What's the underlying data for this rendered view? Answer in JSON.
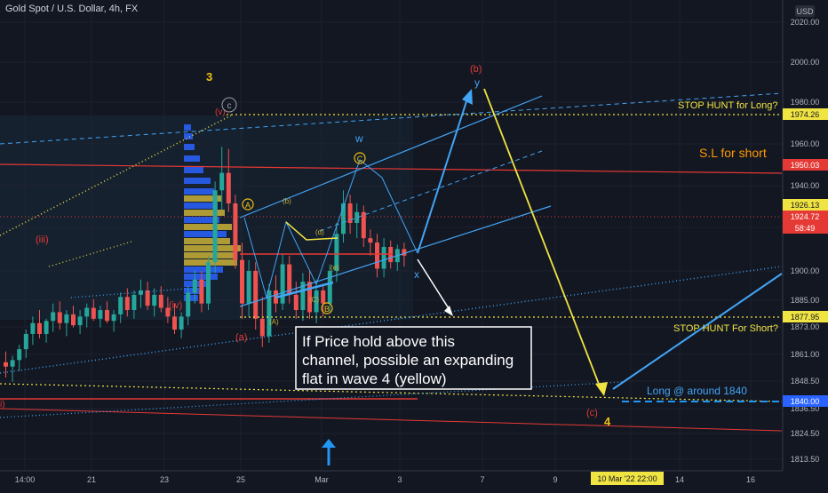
{
  "header": {
    "title": "Gold Spot / U.S. Dollar, 4h, FX"
  },
  "axis": {
    "currency": "USD",
    "y_ticks": [
      "2020.00",
      "2000.00",
      "1980.00",
      "1960.00",
      "1940.00",
      "1900.00",
      "1885.00",
      "1873.00",
      "1861.00",
      "1848.50",
      "1836.50",
      "1824.50",
      "1813.50"
    ],
    "x_ticks": [
      "14:00",
      "21",
      "23",
      "25",
      "Mar",
      "3",
      "7",
      "9",
      "14",
      "16"
    ],
    "cursor_time": "10 Mar '22  22:00"
  },
  "price_tags": {
    "stop_hunt_long": "1974.26",
    "sl_short": "1950.03",
    "price_a": "1926.13",
    "last_price": "1924.72",
    "countdown": "58:49",
    "stop_hunt_short": "1877.95",
    "long_target": "1840.00"
  },
  "annotations": {
    "stop_hunt_long": "STOP HUNT for Long?",
    "sl_short": "S.L for short",
    "stop_hunt_short": "STOP HUNT For Short?",
    "long_target": "Long @ around 1840",
    "wave_3": "3",
    "wave_4": "4",
    "wave_iii": "(iii)",
    "wave_iv": "(iv)",
    "wave_v": "(v)",
    "wave_a_small": "(a)",
    "wave_b_red": "(b)",
    "wave_c_red": "(c)",
    "wave_i": "i)",
    "w": "w",
    "x": "x",
    "y": "y",
    "A": "A",
    "B": "B",
    "C": "C",
    "sub_b": "(b)",
    "sub_d": "(d)",
    "sub_a": "(A)",
    "sub_c": "(C)",
    "sub_e": "(e)",
    "circle_c": "c"
  },
  "note": {
    "line1": "If Price hold above this",
    "line2": "channel, possible an expanding",
    "line3": "flat in wave 4 (yellow)"
  },
  "chart_data": {
    "type": "candlestick",
    "symbol": "Gold Spot / U.S. Dollar",
    "timeframe": "4h",
    "y_scale_ticks": [
      2020.0,
      2000.0,
      1980.0,
      1960.0,
      1940.0,
      1900.0,
      1885.0,
      1873.0,
      1861.0,
      1848.5,
      1836.5,
      1824.5,
      1813.5
    ],
    "levels": [
      {
        "label": "STOP HUNT for Long?",
        "value": 1974.26
      },
      {
        "label": "S.L for short",
        "value": 1950.03
      },
      {
        "label": "",
        "value": 1926.13
      },
      {
        "label": "",
        "value": 1924.72
      },
      {
        "label": "STOP HUNT For Short?",
        "value": 1877.95
      },
      {
        "label": "Long @ around 1840",
        "value": 1840.0
      }
    ],
    "candles": [
      {
        "o": 1875,
        "h": 1880,
        "l": 1868,
        "c": 1873
      },
      {
        "o": 1873,
        "h": 1878,
        "l": 1866,
        "c": 1876
      },
      {
        "o": 1876,
        "h": 1883,
        "l": 1871,
        "c": 1881
      },
      {
        "o": 1881,
        "h": 1890,
        "l": 1877,
        "c": 1888
      },
      {
        "o": 1888,
        "h": 1896,
        "l": 1883,
        "c": 1893
      },
      {
        "o": 1893,
        "h": 1899,
        "l": 1886,
        "c": 1888
      },
      {
        "o": 1888,
        "h": 1895,
        "l": 1884,
        "c": 1894
      },
      {
        "o": 1894,
        "h": 1902,
        "l": 1889,
        "c": 1898
      },
      {
        "o": 1898,
        "h": 1903,
        "l": 1890,
        "c": 1893
      },
      {
        "o": 1893,
        "h": 1899,
        "l": 1887,
        "c": 1897
      },
      {
        "o": 1897,
        "h": 1901,
        "l": 1891,
        "c": 1892
      },
      {
        "o": 1892,
        "h": 1899,
        "l": 1888,
        "c": 1896
      },
      {
        "o": 1896,
        "h": 1902,
        "l": 1891,
        "c": 1900
      },
      {
        "o": 1900,
        "h": 1904,
        "l": 1894,
        "c": 1895
      },
      {
        "o": 1895,
        "h": 1901,
        "l": 1891,
        "c": 1899
      },
      {
        "o": 1899,
        "h": 1903,
        "l": 1893,
        "c": 1894
      },
      {
        "o": 1894,
        "h": 1899,
        "l": 1889,
        "c": 1897
      },
      {
        "o": 1897,
        "h": 1907,
        "l": 1893,
        "c": 1905
      },
      {
        "o": 1905,
        "h": 1909,
        "l": 1896,
        "c": 1899
      },
      {
        "o": 1899,
        "h": 1908,
        "l": 1895,
        "c": 1906
      },
      {
        "o": 1906,
        "h": 1913,
        "l": 1900,
        "c": 1908
      },
      {
        "o": 1908,
        "h": 1912,
        "l": 1899,
        "c": 1901
      },
      {
        "o": 1901,
        "h": 1909,
        "l": 1896,
        "c": 1906
      },
      {
        "o": 1906,
        "h": 1910,
        "l": 1898,
        "c": 1900
      },
      {
        "o": 1900,
        "h": 1905,
        "l": 1893,
        "c": 1896
      },
      {
        "o": 1896,
        "h": 1902,
        "l": 1888,
        "c": 1890
      },
      {
        "o": 1890,
        "h": 1898,
        "l": 1886,
        "c": 1896
      },
      {
        "o": 1896,
        "h": 1910,
        "l": 1892,
        "c": 1907
      },
      {
        "o": 1907,
        "h": 1917,
        "l": 1902,
        "c": 1913
      },
      {
        "o": 1913,
        "h": 1917,
        "l": 1898,
        "c": 1902
      },
      {
        "o": 1902,
        "h": 1924,
        "l": 1899,
        "c": 1921
      },
      {
        "o": 1921,
        "h": 1958,
        "l": 1916,
        "c": 1954
      },
      {
        "o": 1954,
        "h": 1974,
        "l": 1945,
        "c": 1962
      },
      {
        "o": 1962,
        "h": 1973,
        "l": 1944,
        "c": 1948
      },
      {
        "o": 1948,
        "h": 1952,
        "l": 1918,
        "c": 1922
      },
      {
        "o": 1922,
        "h": 1930,
        "l": 1895,
        "c": 1902
      },
      {
        "o": 1902,
        "h": 1922,
        "l": 1896,
        "c": 1917
      },
      {
        "o": 1917,
        "h": 1921,
        "l": 1890,
        "c": 1895
      },
      {
        "o": 1895,
        "h": 1905,
        "l": 1882,
        "c": 1887
      },
      {
        "o": 1887,
        "h": 1911,
        "l": 1884,
        "c": 1908
      },
      {
        "o": 1908,
        "h": 1915,
        "l": 1898,
        "c": 1902
      },
      {
        "o": 1902,
        "h": 1925,
        "l": 1899,
        "c": 1920
      },
      {
        "o": 1920,
        "h": 1924,
        "l": 1902,
        "c": 1906
      },
      {
        "o": 1906,
        "h": 1912,
        "l": 1895,
        "c": 1899
      },
      {
        "o": 1899,
        "h": 1916,
        "l": 1894,
        "c": 1912
      },
      {
        "o": 1912,
        "h": 1917,
        "l": 1895,
        "c": 1898
      },
      {
        "o": 1898,
        "h": 1913,
        "l": 1893,
        "c": 1908
      },
      {
        "o": 1908,
        "h": 1911,
        "l": 1896,
        "c": 1902
      },
      {
        "o": 1902,
        "h": 1920,
        "l": 1898,
        "c": 1917
      },
      {
        "o": 1917,
        "h": 1939,
        "l": 1912,
        "c": 1934
      },
      {
        "o": 1934,
        "h": 1954,
        "l": 1930,
        "c": 1948
      },
      {
        "o": 1948,
        "h": 1952,
        "l": 1934,
        "c": 1939
      },
      {
        "o": 1939,
        "h": 1948,
        "l": 1932,
        "c": 1944
      },
      {
        "o": 1944,
        "h": 1947,
        "l": 1928,
        "c": 1932
      },
      {
        "o": 1932,
        "h": 1936,
        "l": 1924,
        "c": 1930
      },
      {
        "o": 1930,
        "h": 1934,
        "l": 1914,
        "c": 1918
      },
      {
        "o": 1918,
        "h": 1932,
        "l": 1914,
        "c": 1928
      },
      {
        "o": 1928,
        "h": 1931,
        "l": 1918,
        "c": 1921
      },
      {
        "o": 1921,
        "h": 1929,
        "l": 1917,
        "c": 1927
      },
      {
        "o": 1927,
        "h": 1930,
        "l": 1919,
        "c": 1924
      }
    ]
  }
}
